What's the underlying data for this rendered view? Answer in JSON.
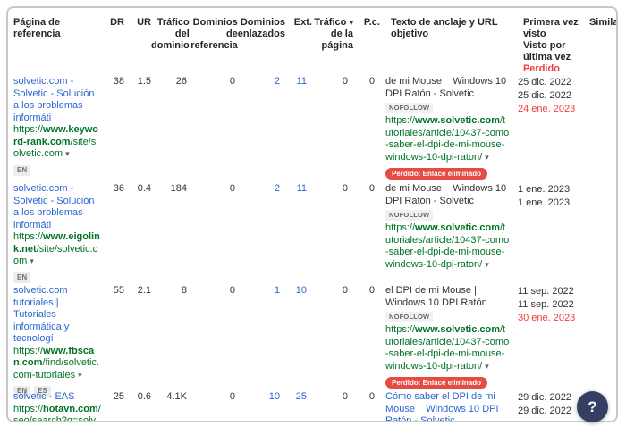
{
  "help_button": "?",
  "colors": {
    "link_blue": "#2b66d1",
    "url_green": "#007326",
    "lost_red": "#f03e3e",
    "lost_badge_bg": "#e54c44",
    "help_button_bg": "#353f63",
    "frame_border": "#c9c9c9"
  },
  "table": {
    "headers": {
      "ref_page": "Página de referencia",
      "dr": "DR",
      "ur": "UR",
      "domain_traffic": [
        "Tráfico",
        "del",
        "dominio"
      ],
      "ref_domains": [
        "Dominios",
        "de",
        "referencia"
      ],
      "linked_domains": [
        "Dominios",
        "enlazados"
      ],
      "ext": "Ext.",
      "page_traffic": [
        "Tráfico",
        "de la",
        "página"
      ],
      "pc": "P.c.",
      "anchor": "Texto de anclaje y URL objetivo",
      "first_seen": [
        "Primera vez",
        "visto",
        "Visto por",
        "última vez"
      ],
      "lost": "Perdido",
      "similar": "Similar",
      "sort_caret": "▾"
    },
    "rows": [
      {
        "title": "solvetic.com - Solvetic - Solución a los problemas informáti",
        "url_scheme": "https://",
        "url_domain": "www.keyword-rank.com",
        "url_path": "/site/solvetic.com",
        "url_caret": "▾",
        "lang_1": "EN",
        "lang_2": null,
        "dr": "38",
        "ur": "1.5",
        "domain_traffic": "26",
        "ref_domains": "0",
        "linked_domains": "2",
        "ext": "11",
        "page_traffic": "0",
        "pc": "0",
        "anchor_text": "de mi Mouse    Windows 10 DPI Ratón - Solvetic",
        "rel_badge": "NOFOLLOW",
        "target_scheme": "https://",
        "target_domain": "www.solvetic.com",
        "target_path": "/tutoriales/article/10437-como-saber-el-dpi-de-mi-mouse-windows-10-dpi-raton/",
        "target_caret": "▾",
        "lost_badge": "Perdido: Enlace eliminado",
        "first_seen": "25 dic. 2022",
        "last_seen": "25 dic. 2022",
        "lost_date": "24 ene. 2023"
      },
      {
        "title": "solvetic.com - Solvetic - Solución a los problemas informáti",
        "url_scheme": "https://",
        "url_domain": "www.eigolink.net",
        "url_path": "/site/solvetic.com",
        "url_caret": "▾",
        "lang_1": "EN",
        "lang_2": null,
        "dr": "36",
        "ur": "0.4",
        "domain_traffic": "184",
        "ref_domains": "0",
        "linked_domains": "2",
        "ext": "11",
        "page_traffic": "0",
        "pc": "0",
        "anchor_text": "de mi Mouse    Windows 10 DPI Ratón - Solvetic",
        "rel_badge": "NOFOLLOW",
        "target_scheme": "https://",
        "target_domain": "www.solvetic.com",
        "target_path": "/tutoriales/article/10437-como-saber-el-dpi-de-mi-mouse-windows-10-dpi-raton/",
        "target_caret": "▾",
        "lost_badge": null,
        "first_seen": "1 ene. 2023",
        "last_seen": "1 ene. 2023",
        "lost_date": null
      },
      {
        "title": "solvetic.com tutoriales | Tutoriales informática y tecnologí",
        "url_scheme": "https://",
        "url_domain": "www.fbscan.com",
        "url_path": "/find/solvetic.com-tutoriales",
        "url_caret": "▾",
        "lang_1": "EN",
        "lang_2": "ES",
        "dr": "55",
        "ur": "2.1",
        "domain_traffic": "8",
        "ref_domains": "0",
        "linked_domains": "1",
        "ext": "10",
        "page_traffic": "0",
        "pc": "0",
        "anchor_text": "el DPI de mi Mouse | Windows 10 DPI Ratón",
        "rel_badge": "NOFOLLOW",
        "target_scheme": "https://",
        "target_domain": "www.solvetic.com",
        "target_path": "/tutoriales/article/10437-como-saber-el-dpi-de-mi-mouse-windows-10-dpi-raton/",
        "target_caret": "▾",
        "lost_badge": "Perdido: Enlace eliminado",
        "first_seen": "11 sep. 2022",
        "last_seen": "11 sep. 2022",
        "lost_date": "30 ene. 2023"
      },
      {
        "title": "solvetic - EAS",
        "url_scheme": "https://",
        "url_domain": "hotavn.com",
        "url_path": "/seo/search?q=solv",
        "url_caret": null,
        "lang_1": null,
        "lang_2": null,
        "dr": "25",
        "ur": "0.6",
        "domain_traffic": "4.1K",
        "ref_domains": "0",
        "linked_domains": "10",
        "ext": "25",
        "page_traffic": "0",
        "pc": "0",
        "anchor_text": "Cómo saber el DPI de mi Mouse    Windows 10 DPI Ratón - Solvetic",
        "rel_badge": null,
        "target_scheme": null,
        "target_domain": null,
        "target_path": null,
        "target_caret": null,
        "lost_badge": null,
        "first_seen": "29 dic. 2022",
        "last_seen": "29 dic. 2022",
        "lost_date": null
      }
    ]
  }
}
